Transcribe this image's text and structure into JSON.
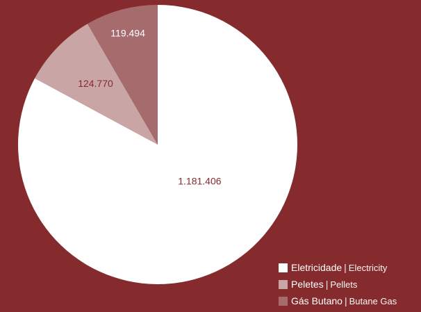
{
  "colors": {
    "background": "#852b2d",
    "label_on_light": "#852b2d",
    "label_on_dark": "#ffffff"
  },
  "chart_data": {
    "type": "pie",
    "slices": [
      {
        "key": "electricity",
        "label_pt": "Eletricidade",
        "label_en": "Electricity",
        "value": 1181406,
        "display": "1.181.406",
        "color": "#ffffff"
      },
      {
        "key": "pellets",
        "label_pt": "Peletes",
        "label_en": "Pellets",
        "value": 124770,
        "display": "124.770",
        "color": "#c9a5a5"
      },
      {
        "key": "butane",
        "label_pt": "Gás Butano",
        "label_en": "Butane Gas",
        "value": 119494,
        "display": "119.494",
        "color": "#a66b6d"
      }
    ],
    "legend_position": "bottom-right"
  },
  "legend": {
    "separator": "|"
  }
}
